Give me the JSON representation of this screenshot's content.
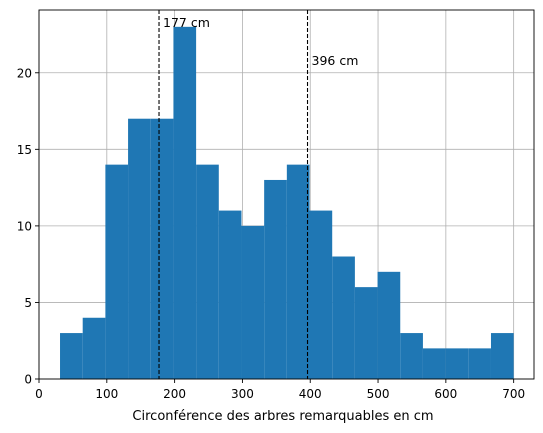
{
  "chart_data": {
    "type": "bar",
    "title": "",
    "xlabel": "Circonférence des arbres remarquables en cm",
    "ylabel": "",
    "xlim": [
      0,
      730
    ],
    "ylim": [
      0,
      24.1
    ],
    "grid": true,
    "xticks": [
      0,
      100,
      200,
      300,
      400,
      500,
      600,
      700
    ],
    "yticks": [
      0,
      5,
      10,
      15,
      20
    ],
    "bin_edges": [
      31,
      64.45,
      97.9,
      131.35,
      164.8,
      198.25,
      231.7,
      265.15,
      298.6,
      332.05,
      365.5,
      398.95,
      432.4,
      465.85,
      499.3,
      532.75,
      566.2,
      599.65,
      633.1,
      666.55,
      700
    ],
    "values": [
      3,
      4,
      14,
      17,
      17,
      23,
      14,
      11,
      10,
      13,
      14,
      11,
      8,
      6,
      7,
      3,
      2,
      2,
      2,
      3
    ],
    "bar_color": "#1f77b4",
    "vlines": [
      {
        "x": 177,
        "label": "177 cm"
      },
      {
        "x": 396,
        "label": "396 cm"
      }
    ]
  }
}
